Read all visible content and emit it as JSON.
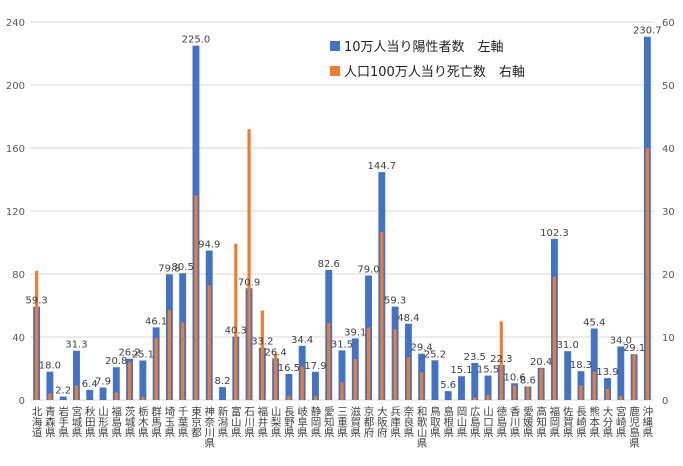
{
  "chart_data": {
    "type": "bar",
    "title": "",
    "xlabel": "",
    "ylabel": "",
    "grid": true,
    "legend_position": "top-right",
    "left_axis": {
      "min": 0,
      "max": 240,
      "ticks": [
        0,
        40,
        80,
        120,
        160,
        200,
        240
      ]
    },
    "right_axis": {
      "min": 0,
      "max": 60,
      "ticks": [
        0,
        10,
        20,
        30,
        40,
        50,
        60
      ]
    },
    "categories": [
      "北海道",
      "青森県",
      "岩手県",
      "宮城県",
      "秋田県",
      "山形県",
      "福島県",
      "茨城県",
      "栃木県",
      "群馬県",
      "埼玉県",
      "千葉県",
      "東京都",
      "神奈川県",
      "新潟県",
      "富山県",
      "石川県",
      "福井県",
      "山梨県",
      "長野県",
      "岐阜県",
      "静岡県",
      "愛知県",
      "三重県",
      "滋賀県",
      "京都府",
      "大阪府",
      "兵庫県",
      "奈良県",
      "和歌山県",
      "鳥取県",
      "島根県",
      "岡山県",
      "広島県",
      "山口県",
      "徳島県",
      "香川県",
      "愛媛県",
      "高知県",
      "福岡県",
      "佐賀県",
      "長崎県",
      "熊本県",
      "大分県",
      "宮崎県",
      "鹿児島県",
      "沖縄県"
    ],
    "series": [
      {
        "name": "10万人当り陽性者数　左軸",
        "axis": "left",
        "color": "#4472C4",
        "values": [
          59.3,
          18.0,
          2.2,
          31.3,
          6.4,
          7.9,
          20.8,
          26.2,
          25.1,
          46.1,
          79.8,
          80.5,
          225.0,
          94.9,
          8.2,
          40.3,
          70.9,
          33.2,
          26.4,
          16.5,
          34.4,
          17.9,
          82.6,
          31.5,
          39.1,
          79.0,
          144.7,
          59.3,
          48.4,
          29.4,
          25.2,
          5.6,
          15.1,
          23.5,
          15.5,
          22.3,
          10.6,
          8.6,
          20.4,
          102.3,
          31.0,
          18.3,
          45.4,
          13.9,
          34.0,
          29.1,
          230.7
        ]
      },
      {
        "name": "人口100万人当り死亡数　右軸",
        "axis": "right",
        "color": "#ED7D31",
        "values": [
          20.5,
          1.0,
          0,
          2.3,
          0,
          0,
          1.2,
          6.0,
          0.5,
          9.8,
          14.3,
          12.3,
          32.5,
          18.2,
          0,
          24.8,
          43.0,
          14.2,
          7.4,
          0.6,
          5.3,
          0.6,
          12.2,
          2.8,
          6.5,
          11.5,
          26.7,
          11.2,
          6.8,
          4.4,
          0,
          0,
          0,
          0.4,
          0.8,
          12.5,
          2.3,
          2.1,
          5.0,
          19.6,
          0,
          2.3,
          4.5,
          1.8,
          0.6,
          7.3,
          40.0
        ]
      }
    ]
  }
}
